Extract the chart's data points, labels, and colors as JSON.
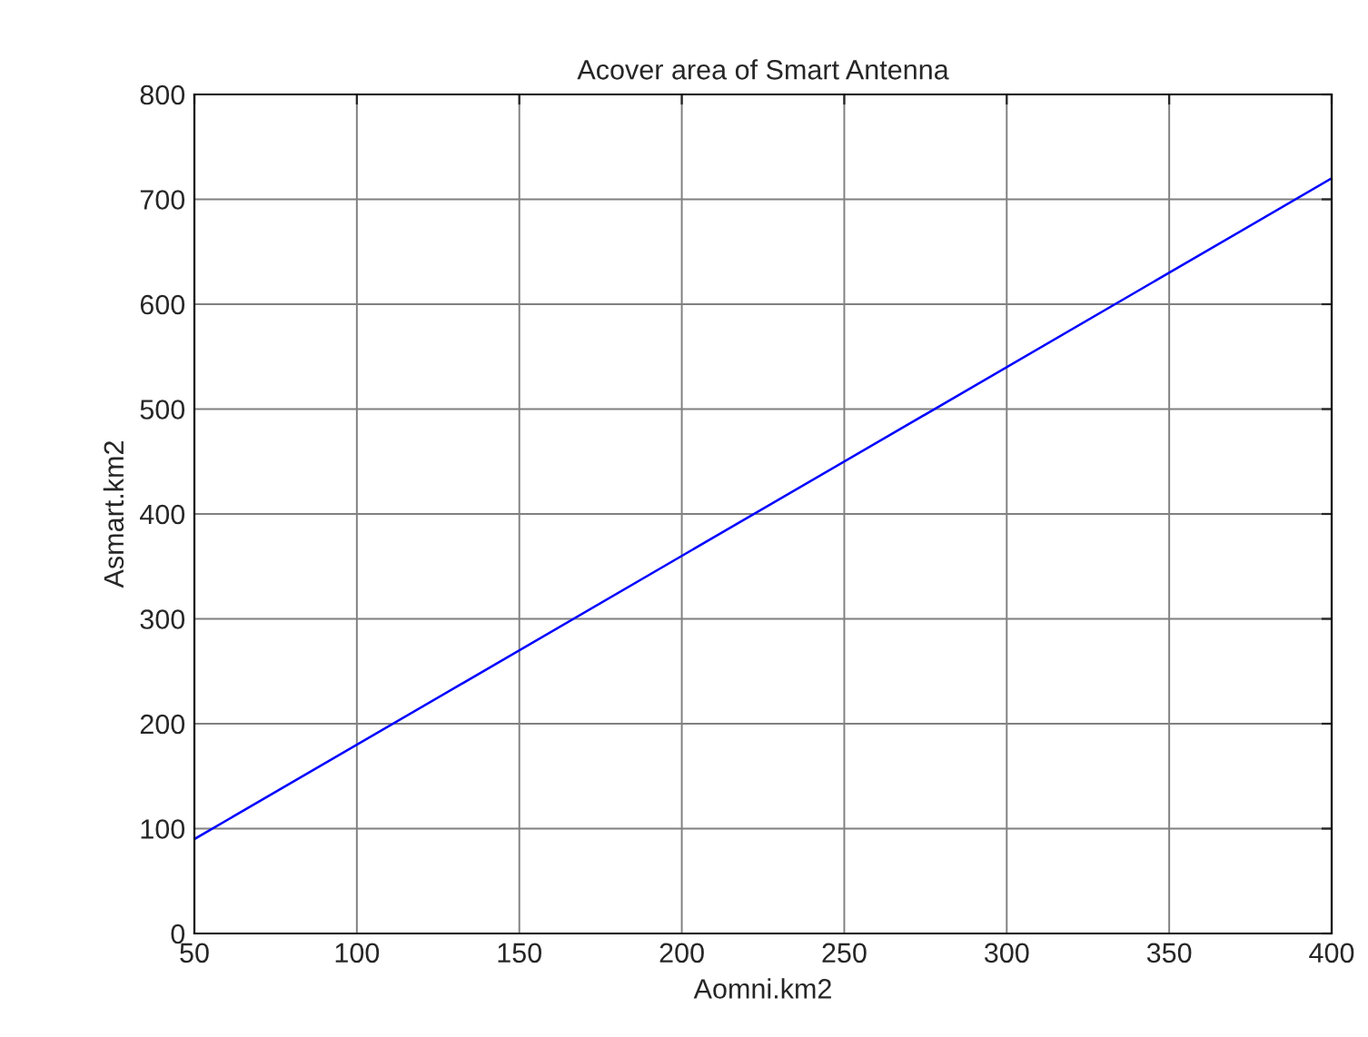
{
  "chart_data": {
    "type": "line",
    "title": "Acover area of Smart Antenna",
    "xlabel": "Aomni.km2",
    "ylabel": "Asmart.km2",
    "x": [
      50,
      400
    ],
    "series": [
      {
        "color": "#0000ff",
        "values": [
          90,
          720
        ]
      }
    ],
    "xlim": [
      50,
      400
    ],
    "xticks": [
      50,
      100,
      150,
      200,
      250,
      300,
      350,
      400
    ],
    "ylim": [
      0,
      800
    ],
    "yticks": [
      0,
      100,
      200,
      300,
      400,
      500,
      600,
      700,
      800
    ],
    "grid": true
  }
}
